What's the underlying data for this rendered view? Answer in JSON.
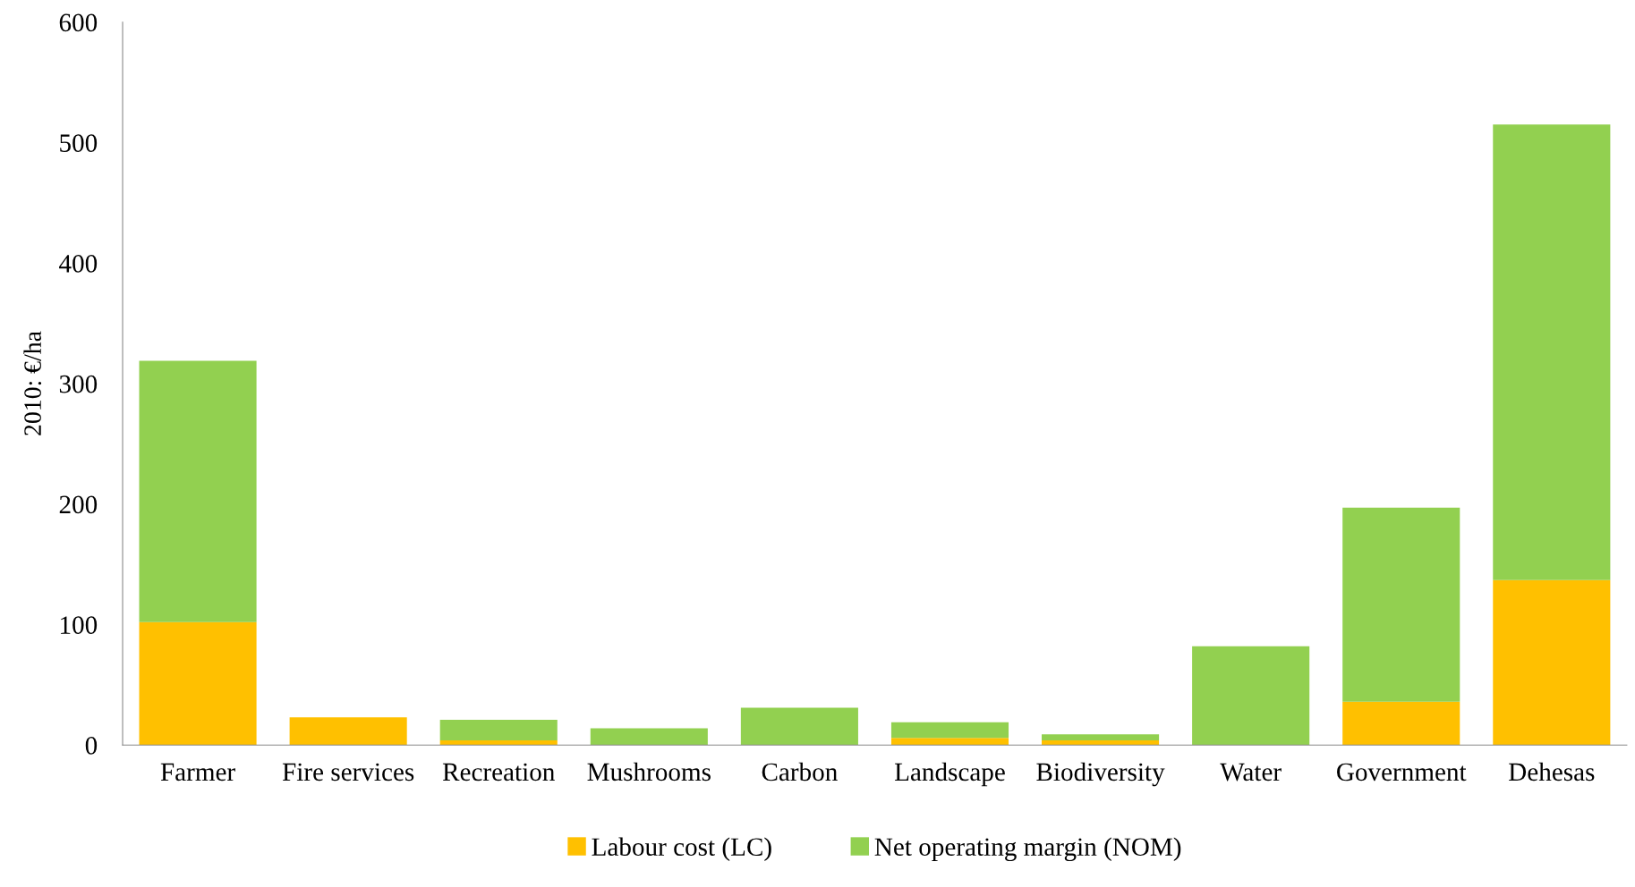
{
  "chart_data": {
    "type": "bar",
    "stacked": true,
    "ylabel": "2010: €/ha",
    "categories": [
      "Farmer",
      "Fire services",
      "Recreation",
      "Mushrooms",
      "Carbon",
      "Landscape",
      "Biodiversity",
      "Water",
      "Government",
      "Dehesas"
    ],
    "series": [
      {
        "name": "Labour cost (LC)",
        "color": "#ffc000",
        "values": [
          102,
          23,
          4,
          0,
          0,
          6,
          4,
          0,
          36,
          137
        ]
      },
      {
        "name": "Net operating margin (NOM)",
        "color": "#92d050",
        "values": [
          217,
          0,
          17,
          14,
          31,
          13,
          5,
          82,
          161,
          378
        ]
      }
    ],
    "ylim": [
      0,
      600
    ],
    "yticks": [
      0,
      100,
      200,
      300,
      400,
      500,
      600
    ],
    "grid": false,
    "legend": "bottom"
  }
}
